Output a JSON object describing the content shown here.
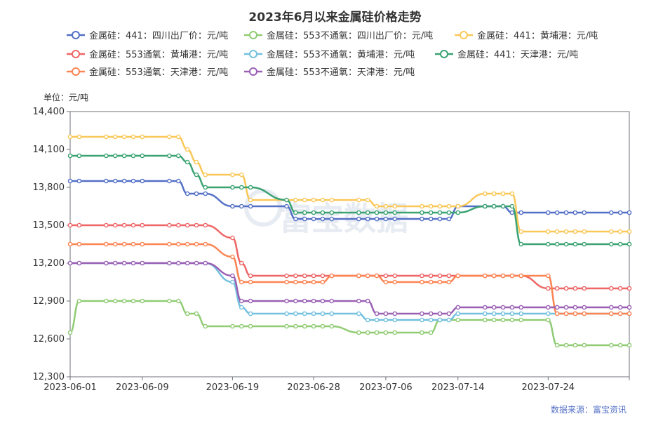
{
  "title": "2023年6月以来金属硅价格走势",
  "unit_label": "单位：元/吨",
  "source_label": "数据来源：富宝资讯",
  "watermark": "富宝数据",
  "chart_data": {
    "type": "line",
    "title": "2023年6月以来金属硅价格走势",
    "ylabel": "单位：元/吨",
    "ylim": [
      12300,
      14400
    ],
    "y_ticks": [
      "12,300",
      "12,600",
      "12,900",
      "13,200",
      "13,500",
      "13,800",
      "14,100",
      "14,400"
    ],
    "x_tick_labels": [
      "2023-06-01",
      "2023-06-09",
      "2023-06-19",
      "2023-06-28",
      "2023-07-06",
      "2023-07-14",
      "2023-07-24"
    ],
    "legend_position": "top",
    "grid": false,
    "x": [
      "2023-06-01",
      "2023-06-02",
      "2023-06-05",
      "2023-06-06",
      "2023-06-07",
      "2023-06-08",
      "2023-06-09",
      "2023-06-12",
      "2023-06-13",
      "2023-06-14",
      "2023-06-15",
      "2023-06-16",
      "2023-06-19",
      "2023-06-20",
      "2023-06-21",
      "2023-06-25",
      "2023-06-26",
      "2023-06-27",
      "2023-06-28",
      "2023-06-29",
      "2023-06-30",
      "2023-07-03",
      "2023-07-04",
      "2023-07-05",
      "2023-07-06",
      "2023-07-07",
      "2023-07-10",
      "2023-07-11",
      "2023-07-12",
      "2023-07-13",
      "2023-07-14",
      "2023-07-17",
      "2023-07-18",
      "2023-07-19",
      "2023-07-20",
      "2023-07-21",
      "2023-07-24",
      "2023-07-25",
      "2023-07-26",
      "2023-07-27",
      "2023-07-28",
      "2023-07-31",
      "2023-08-01",
      "2023-08-02"
    ],
    "series": [
      {
        "name": "金属硅：441：四川出厂价：元/吨",
        "color": "#5470c6",
        "values": [
          13850,
          13850,
          13850,
          13850,
          13850,
          13850,
          13850,
          13850,
          13850,
          13750,
          13750,
          13750,
          13650,
          13650,
          13650,
          13650,
          13550,
          13550,
          13550,
          13550,
          13550,
          13550,
          13550,
          13550,
          13550,
          13550,
          13550,
          13550,
          13550,
          13550,
          13650,
          13650,
          13650,
          13650,
          13600,
          13600,
          13600,
          13600,
          13600,
          13600,
          13600,
          13600,
          13600,
          13600
        ]
      },
      {
        "name": "金属硅：553不通氧：四川出厂价：元/吨",
        "color": "#91cc75",
        "values": [
          12650,
          12900,
          12900,
          12900,
          12900,
          12900,
          12900,
          12900,
          12900,
          12800,
          12800,
          12700,
          12700,
          12700,
          12700,
          12700,
          12700,
          12700,
          12700,
          12700,
          12700,
          12650,
          12650,
          12650,
          12650,
          12650,
          12650,
          12650,
          12750,
          12750,
          12750,
          12750,
          12750,
          12750,
          12750,
          12750,
          12750,
          12550,
          12550,
          12550,
          12550,
          12550,
          12550,
          12550
        ]
      },
      {
        "name": "金属硅：441：黄埔港：元/吨",
        "color": "#fac858",
        "values": [
          14200,
          14200,
          14200,
          14200,
          14200,
          14200,
          14200,
          14200,
          14200,
          14100,
          14000,
          13900,
          13900,
          13900,
          13700,
          13700,
          13700,
          13700,
          13700,
          13700,
          13700,
          13700,
          13700,
          13650,
          13650,
          13650,
          13650,
          13650,
          13650,
          13650,
          13650,
          13750,
          13750,
          13750,
          13750,
          13450,
          13450,
          13450,
          13450,
          13450,
          13450,
          13450,
          13450,
          13450
        ]
      },
      {
        "name": "金属硅：553通氧：黄埔港：元/吨",
        "color": "#ee6666",
        "values": [
          13500,
          13500,
          13500,
          13500,
          13500,
          13500,
          13500,
          13500,
          13500,
          13500,
          13500,
          13500,
          13400,
          13200,
          13100,
          13100,
          13100,
          13100,
          13100,
          13100,
          13100,
          13100,
          13100,
          13100,
          13100,
          13100,
          13100,
          13100,
          13100,
          13100,
          13100,
          13100,
          13100,
          13100,
          13100,
          13100,
          13000,
          13000,
          13000,
          13000,
          13000,
          13000,
          13000,
          13000
        ]
      },
      {
        "name": "金属硅：553不通氧：黄埔港：元/吨",
        "color": "#73c0de",
        "values": [
          13200,
          13200,
          13200,
          13200,
          13200,
          13200,
          13200,
          13200,
          13200,
          13200,
          13200,
          13200,
          13050,
          12850,
          12800,
          12800,
          12800,
          12800,
          12800,
          12800,
          12800,
          12800,
          12750,
          12750,
          12750,
          12750,
          12750,
          12750,
          12750,
          12750,
          12800,
          12800,
          12800,
          12800,
          12800,
          12800,
          12800,
          12800,
          12800,
          12800,
          12800,
          12800,
          12800,
          12800
        ]
      },
      {
        "name": "金属硅：441：天津港：元/吨",
        "color": "#3ba272",
        "values": [
          14050,
          14050,
          14050,
          14050,
          14050,
          14050,
          14050,
          14050,
          14050,
          14000,
          13900,
          13800,
          13800,
          13800,
          13800,
          13700,
          13600,
          13600,
          13600,
          13600,
          13600,
          13600,
          13600,
          13600,
          13600,
          13600,
          13600,
          13600,
          13600,
          13600,
          13600,
          13650,
          13650,
          13650,
          13650,
          13350,
          13350,
          13350,
          13350,
          13350,
          13350,
          13350,
          13350,
          13350
        ]
      },
      {
        "name": "金属硅：553通氧：天津港：元/吨",
        "color": "#fc8452",
        "values": [
          13350,
          13350,
          13350,
          13350,
          13350,
          13350,
          13350,
          13350,
          13350,
          13350,
          13350,
          13350,
          13250,
          13050,
          13050,
          13050,
          13050,
          13050,
          13050,
          13050,
          13100,
          13100,
          13100,
          13100,
          13050,
          13050,
          13050,
          13050,
          13050,
          13050,
          13100,
          13100,
          13100,
          13100,
          13100,
          13100,
          13100,
          12800,
          12800,
          12800,
          12800,
          12800,
          12800,
          12800
        ]
      },
      {
        "name": "金属硅：553不通氧：天津港：元/吨",
        "color": "#9a60b4",
        "values": [
          13200,
          13200,
          13200,
          13200,
          13200,
          13200,
          13200,
          13200,
          13200,
          13200,
          13200,
          13200,
          13100,
          12900,
          12900,
          12900,
          12900,
          12900,
          12900,
          12900,
          12900,
          12900,
          12900,
          12800,
          12800,
          12800,
          12800,
          12800,
          12800,
          12800,
          12850,
          12850,
          12850,
          12850,
          12850,
          12850,
          12850,
          12850,
          12850,
          12850,
          12850,
          12850,
          12850,
          12850
        ]
      }
    ]
  }
}
